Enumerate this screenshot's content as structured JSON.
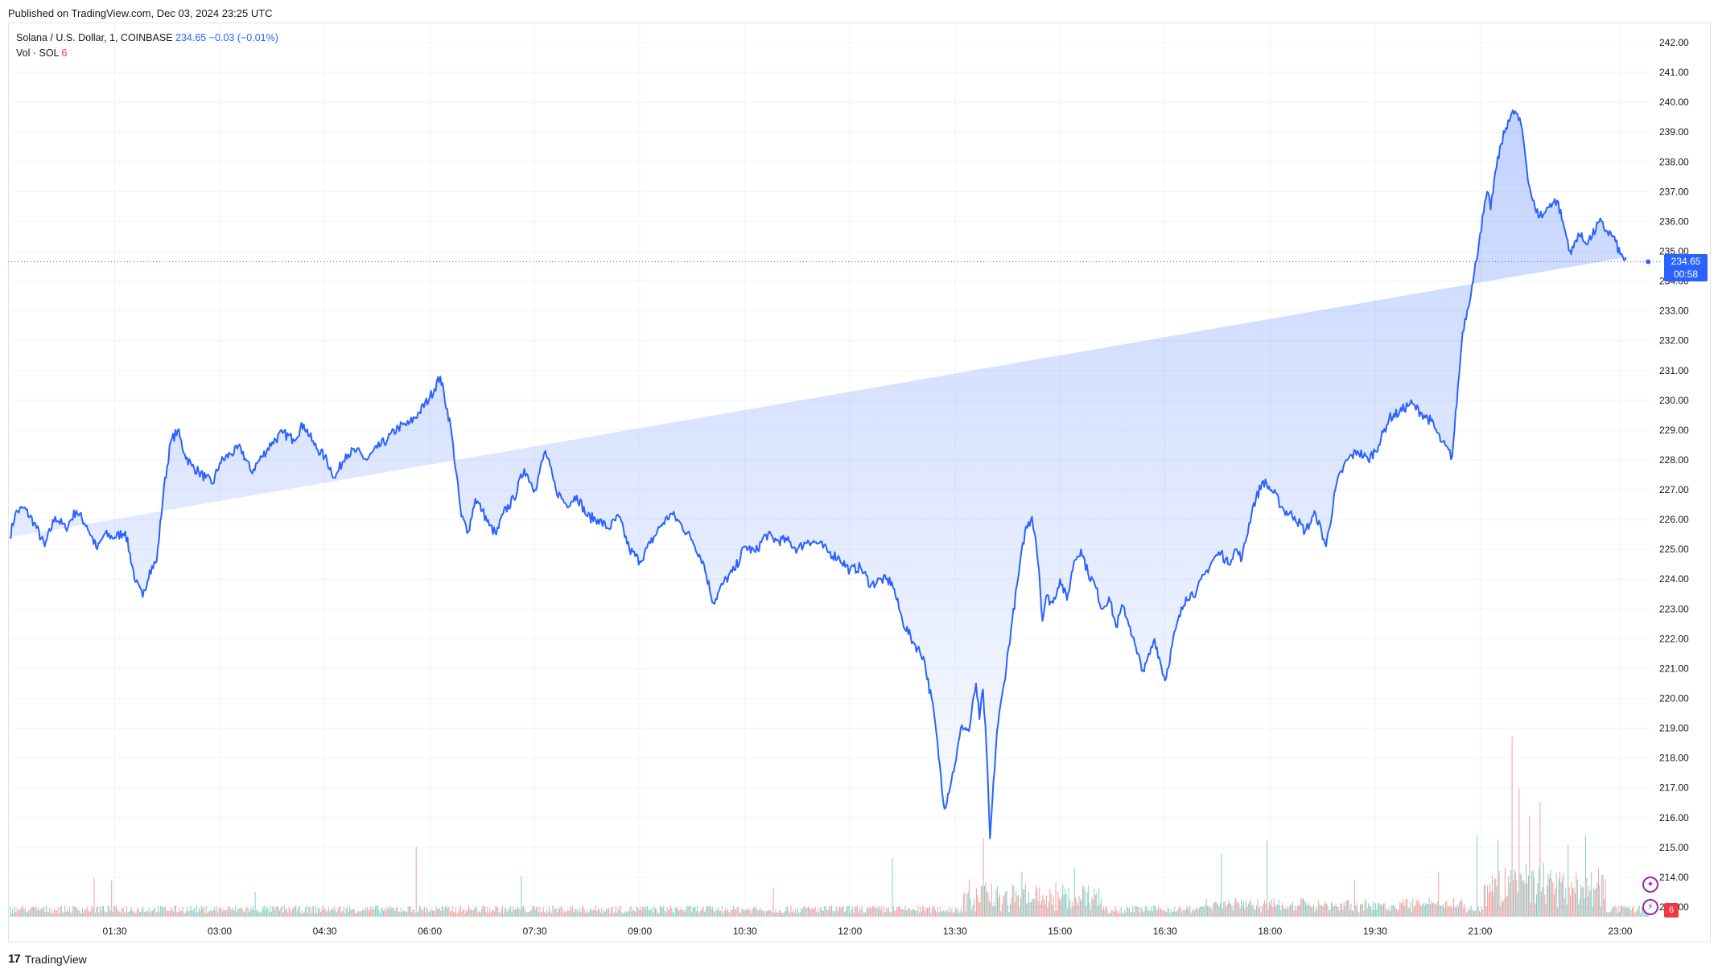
{
  "published": "Published on TradingView.com, Dec 03, 2024 23:25 UTC",
  "legend": {
    "symbol": "Solana / U.S. Dollar, 1, COINBASE",
    "price": "234.65",
    "change": "−0.03 (−0.01%)",
    "vol_label": "Vol · SOL",
    "vol_value": "6"
  },
  "last_price": {
    "value": "234.65",
    "countdown": "00:58"
  },
  "footer": {
    "brand": "TradingView"
  },
  "colors": {
    "line": "#2962ff",
    "up_volume": "#26a69a",
    "down_volume": "#ef5350",
    "grid": "#f0f3fa"
  },
  "chart_data": {
    "type": "area",
    "title": "",
    "xlabel": "",
    "ylabel": "",
    "ylim": [
      212.5,
      242.5
    ],
    "y_ticks": [
      242,
      241,
      240,
      239,
      238,
      237,
      236,
      235,
      234,
      233,
      232,
      231,
      230,
      229,
      228,
      227,
      226,
      225,
      224,
      223,
      222,
      221,
      220,
      219,
      218,
      217,
      216,
      215,
      214,
      213
    ],
    "x_ticks": [
      {
        "label": "01:30",
        "t": 1.5
      },
      {
        "label": "03:00",
        "t": 3.0
      },
      {
        "label": "04:30",
        "t": 4.5
      },
      {
        "label": "06:00",
        "t": 6.0
      },
      {
        "label": "07:30",
        "t": 7.5
      },
      {
        "label": "09:00",
        "t": 9.0
      },
      {
        "label": "10:30",
        "t": 10.5
      },
      {
        "label": "12:00",
        "t": 12.0
      },
      {
        "label": "13:30",
        "t": 13.5
      },
      {
        "label": "15:00",
        "t": 15.0
      },
      {
        "label": "16:30",
        "t": 16.5
      },
      {
        "label": "18:00",
        "t": 18.0
      },
      {
        "label": "19:30",
        "t": 19.5
      },
      {
        "label": "21:00",
        "t": 21.0
      },
      {
        "label": "23:00",
        "t": 23.0
      }
    ],
    "x_range_hours": [
      0.0,
      23.42
    ],
    "series": [
      {
        "t": [
          0.0,
          0.08,
          0.2,
          0.35,
          0.5,
          0.65,
          0.8,
          0.95,
          1.1,
          1.25,
          1.35,
          1.5,
          1.65,
          1.8,
          1.9,
          2.0,
          2.1,
          2.2,
          2.3,
          2.4,
          2.5,
          2.6,
          2.7,
          2.8,
          2.9,
          3.0,
          3.15,
          3.3,
          3.45,
          3.6,
          3.75,
          3.9,
          4.05,
          4.2,
          4.35,
          4.5,
          4.65,
          4.8,
          4.95,
          5.1,
          5.25,
          5.4,
          5.55,
          5.7,
          5.85,
          6.0,
          6.15,
          6.3,
          6.45,
          6.55,
          6.65,
          6.75,
          6.85,
          6.95,
          7.05,
          7.2,
          7.35,
          7.5,
          7.65,
          7.8,
          7.95,
          8.1,
          8.25,
          8.4,
          8.55,
          8.7,
          8.85,
          9.0,
          9.15,
          9.3,
          9.45,
          9.6,
          9.75,
          9.9,
          10.05,
          10.2,
          10.35,
          10.5,
          10.65,
          10.8,
          10.95,
          11.1,
          11.25,
          11.4,
          11.55,
          11.7,
          11.85,
          12.0,
          12.15,
          12.3,
          12.45,
          12.6,
          12.75,
          12.9,
          13.05,
          13.2,
          13.35,
          13.5,
          13.6,
          13.7,
          13.8,
          13.85,
          13.9,
          13.95,
          14.0,
          14.1,
          14.2,
          14.3,
          14.4,
          14.5,
          14.6,
          14.65,
          14.7,
          14.75,
          14.8,
          14.9,
          15.0,
          15.1,
          15.2,
          15.3,
          15.4,
          15.5,
          15.6,
          15.7,
          15.8,
          15.9,
          16.0,
          16.1,
          16.2,
          16.35,
          16.5,
          16.65,
          16.8,
          16.95,
          17.1,
          17.2,
          17.3,
          17.4,
          17.5,
          17.6,
          17.75,
          17.9,
          18.05,
          18.2,
          18.35,
          18.5,
          18.65,
          18.8,
          18.95,
          19.1,
          19.25,
          19.4,
          19.55,
          19.7,
          19.85,
          20.0,
          20.15,
          20.3,
          20.45,
          20.6,
          20.75,
          20.9,
          21.0,
          21.05,
          21.1,
          21.15,
          21.2,
          21.3,
          21.4,
          21.5,
          21.6,
          21.7,
          21.8,
          21.9,
          22.0,
          22.1,
          22.2,
          22.3,
          22.4,
          22.5,
          22.6,
          22.7,
          22.8,
          22.9,
          23.0,
          23.1,
          23.2,
          23.3,
          23.4
        ],
        "price": [
          225.4,
          226.2,
          226.4,
          225.9,
          225.1,
          226.1,
          225.7,
          226.3,
          225.8,
          225.0,
          225.5,
          225.4,
          225.6,
          223.9,
          223.4,
          224.3,
          224.6,
          227.0,
          228.6,
          229.0,
          228.2,
          227.8,
          227.6,
          227.4,
          227.2,
          227.9,
          228.2,
          228.4,
          227.6,
          228.1,
          228.6,
          228.9,
          228.7,
          229.2,
          228.5,
          228.1,
          227.4,
          228.2,
          228.3,
          228.0,
          228.4,
          228.7,
          229.1,
          229.2,
          229.6,
          230.1,
          230.8,
          229.1,
          226.1,
          225.6,
          226.7,
          226.3,
          225.8,
          225.5,
          226.2,
          226.7,
          227.7,
          227.0,
          228.3,
          227.0,
          226.5,
          226.8,
          226.1,
          226.0,
          225.7,
          226.1,
          225.0,
          224.6,
          225.2,
          225.8,
          226.2,
          225.8,
          225.3,
          224.6,
          223.2,
          223.9,
          224.3,
          225.1,
          224.9,
          225.5,
          225.3,
          225.3,
          225.0,
          225.3,
          225.2,
          224.9,
          224.7,
          224.3,
          224.4,
          223.8,
          224.0,
          223.9,
          222.6,
          221.9,
          221.4,
          219.5,
          216.3,
          217.8,
          219.1,
          218.9,
          220.5,
          219.3,
          220.3,
          218.3,
          215.3,
          218.9,
          220.5,
          222.3,
          224.0,
          225.6,
          226.1,
          225.4,
          224.3,
          222.6,
          223.4,
          223.2,
          224.0,
          223.3,
          224.6,
          225.0,
          224.2,
          223.8,
          223.0,
          223.4,
          222.4,
          223.1,
          222.4,
          221.5,
          220.9,
          222.0,
          220.6,
          222.3,
          223.4,
          223.6,
          224.3,
          224.7,
          224.9,
          224.5,
          225.0,
          224.7,
          226.4,
          227.3,
          226.9,
          226.3,
          226.1,
          225.6,
          226.2,
          225.1,
          227.2,
          228.0,
          228.3,
          228.0,
          228.5,
          229.4,
          229.6,
          229.9,
          229.6,
          229.3,
          228.6,
          228.1,
          232.3,
          234.0,
          235.6,
          236.3,
          237.0,
          236.4,
          237.4,
          238.6,
          239.4,
          239.7,
          239.1,
          237.2,
          236.3,
          236.2,
          236.6,
          236.7,
          235.8,
          234.9,
          235.6,
          235.3,
          235.5,
          236.0,
          235.7,
          235.5,
          234.9,
          234.65
        ]
      }
    ],
    "volume": {
      "ylim": [
        0,
        10
      ],
      "spikes": [
        {
          "t": 1.2,
          "v": 1.7,
          "dir": "down"
        },
        {
          "t": 1.45,
          "v": 1.6,
          "dir": "down"
        },
        {
          "t": 3.5,
          "v": 1.1,
          "dir": "up"
        },
        {
          "t": 5.8,
          "v": 3.1,
          "dir": "down"
        },
        {
          "t": 7.3,
          "v": 1.8,
          "dir": "up"
        },
        {
          "t": 10.9,
          "v": 1.3,
          "dir": "down"
        },
        {
          "t": 12.6,
          "v": 2.6,
          "dir": "up"
        },
        {
          "t": 13.9,
          "v": 3.5,
          "dir": "down"
        },
        {
          "t": 14.45,
          "v": 2.0,
          "dir": "up"
        },
        {
          "t": 15.2,
          "v": 2.2,
          "dir": "up"
        },
        {
          "t": 17.3,
          "v": 2.8,
          "dir": "up"
        },
        {
          "t": 17.95,
          "v": 3.4,
          "dir": "up"
        },
        {
          "t": 19.2,
          "v": 1.6,
          "dir": "down"
        },
        {
          "t": 20.4,
          "v": 2.0,
          "dir": "down"
        },
        {
          "t": 20.95,
          "v": 3.6,
          "dir": "up"
        },
        {
          "t": 21.25,
          "v": 3.4,
          "dir": "up"
        },
        {
          "t": 21.45,
          "v": 8.0,
          "dir": "down"
        },
        {
          "t": 21.55,
          "v": 5.7,
          "dir": "down"
        },
        {
          "t": 21.7,
          "v": 4.5,
          "dir": "down"
        },
        {
          "t": 21.85,
          "v": 5.1,
          "dir": "down"
        },
        {
          "t": 22.25,
          "v": 3.2,
          "dir": "up"
        },
        {
          "t": 22.5,
          "v": 3.6,
          "dir": "up"
        }
      ]
    }
  }
}
